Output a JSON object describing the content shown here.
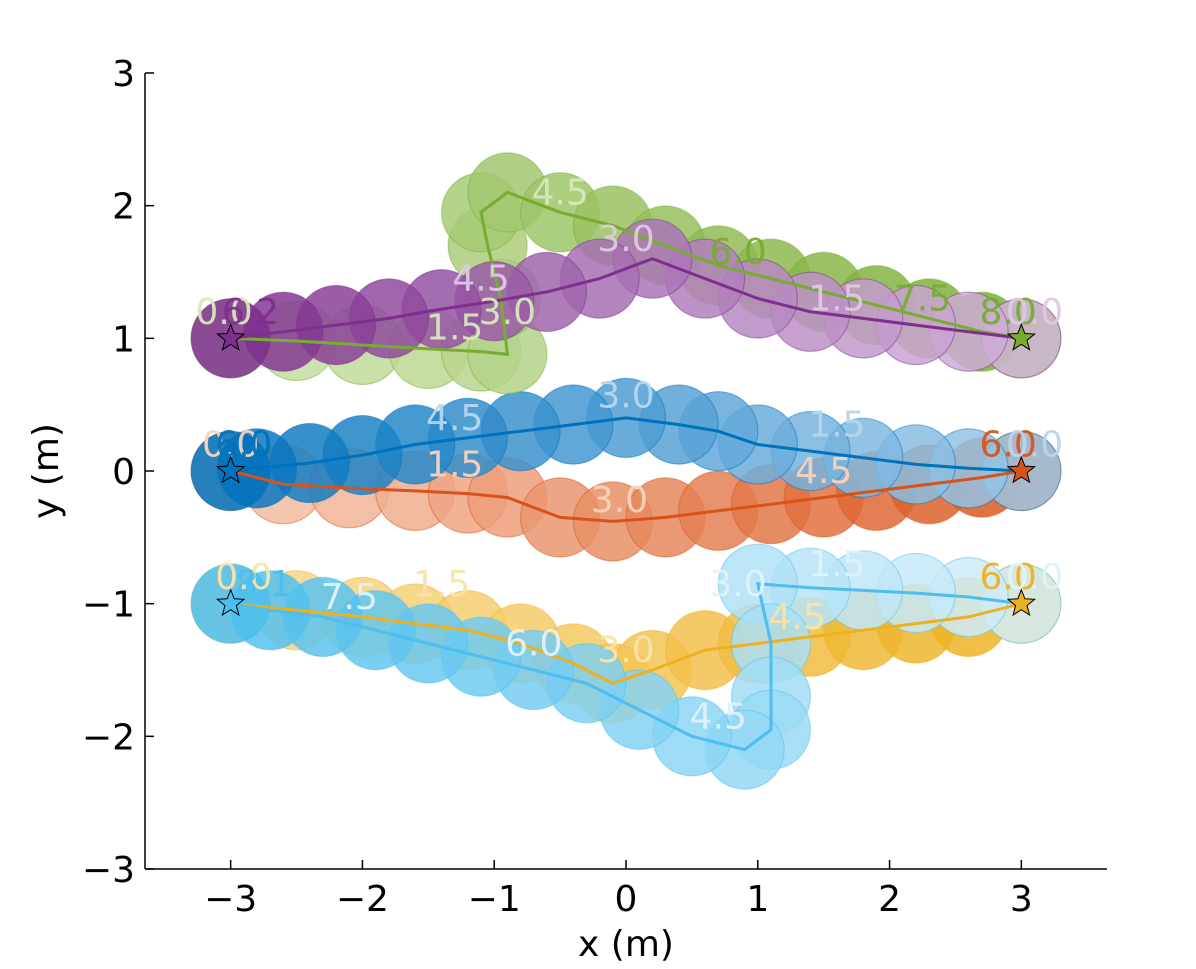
{
  "chart_data": {
    "type": "scatter",
    "xlabel": "x (m)",
    "ylabel": "y (m)",
    "xlim": [
      -3.65,
      3.65
    ],
    "ylim": [
      -3,
      3
    ],
    "xticks": [
      -3,
      -2,
      -1,
      0,
      1,
      2,
      3
    ],
    "yticks": [
      -3,
      -2,
      -1,
      0,
      1,
      2,
      3
    ],
    "xtick_labels": [
      "−3",
      "−2",
      "−1",
      "0",
      "1",
      "2",
      "3"
    ],
    "ytick_labels": [
      "−3",
      "−2",
      "−1",
      "0",
      "1",
      "2",
      "3"
    ],
    "grid": false,
    "series": [
      {
        "color_dark": "#d95319",
        "color_light": "#f5c3aa",
        "goal": [
          3,
          0
        ],
        "goal_color": "#d95319",
        "path": [
          [
            -3,
            0
          ],
          [
            -2.6,
            -0.1
          ],
          [
            -2.1,
            -0.13
          ],
          [
            -1.6,
            -0.15
          ],
          [
            -1.2,
            -0.17
          ],
          [
            -0.9,
            -0.2
          ],
          [
            -0.5,
            -0.35
          ],
          [
            -0.1,
            -0.38
          ],
          [
            0.3,
            -0.35
          ],
          [
            0.7,
            -0.3
          ],
          [
            1.1,
            -0.25
          ],
          [
            1.5,
            -0.2
          ],
          [
            1.9,
            -0.15
          ],
          [
            2.3,
            -0.1
          ],
          [
            2.7,
            -0.05
          ],
          [
            3,
            0
          ]
        ],
        "time_labels": [
          {
            "text": "0.0",
            "at": [
              -3,
              0.2
            ],
            "tone": "light"
          },
          {
            "text": "1.5",
            "at": [
              -1.3,
              0.05
            ],
            "tone": "light"
          },
          {
            "text": "3.0",
            "at": [
              -0.05,
              -0.22
            ],
            "tone": "light"
          },
          {
            "text": "4.5",
            "at": [
              1.5,
              0.0
            ],
            "tone": "light"
          },
          {
            "text": "6.0",
            "at": [
              2.9,
              0.2
            ],
            "tone": "dark"
          }
        ]
      },
      {
        "color_dark": "#0072bd",
        "color_light": "#9dc8e8",
        "goal": [
          -3,
          0
        ],
        "goal_color": "#0072bd",
        "path": [
          [
            3,
            0
          ],
          [
            2.6,
            0.02
          ],
          [
            2.2,
            0.05
          ],
          [
            1.8,
            0.1
          ],
          [
            1.4,
            0.15
          ],
          [
            1.0,
            0.2
          ],
          [
            0.7,
            0.3
          ],
          [
            0.4,
            0.35
          ],
          [
            0.0,
            0.4
          ],
          [
            -0.4,
            0.35
          ],
          [
            -0.8,
            0.3
          ],
          [
            -1.2,
            0.25
          ],
          [
            -1.6,
            0.2
          ],
          [
            -2.0,
            0.12
          ],
          [
            -2.4,
            0.06
          ],
          [
            -2.8,
            0.02
          ],
          [
            -3,
            0
          ]
        ],
        "time_labels": [
          {
            "text": "0.0",
            "at": [
              3.1,
              0.2
            ],
            "tone": "light"
          },
          {
            "text": "1.5",
            "at": [
              1.6,
              0.35
            ],
            "tone": "light"
          },
          {
            "text": "3.0",
            "at": [
              0.0,
              0.57
            ],
            "tone": "light"
          },
          {
            "text": "4.5",
            "at": [
              -1.3,
              0.4
            ],
            "tone": "light"
          },
          {
            "text": "6.0",
            "at": [
              -2.9,
              0.2
            ],
            "tone": "dark"
          }
        ]
      },
      {
        "color_dark": "#edb120",
        "color_light": "#f7d98e",
        "goal": [
          3,
          -1
        ],
        "goal_color": "#edb120",
        "path": [
          [
            -3,
            -1
          ],
          [
            -2.5,
            -1.05
          ],
          [
            -2.0,
            -1.1
          ],
          [
            -1.6,
            -1.15
          ],
          [
            -1.2,
            -1.2
          ],
          [
            -0.8,
            -1.3
          ],
          [
            -0.4,
            -1.45
          ],
          [
            -0.1,
            -1.6
          ],
          [
            0.2,
            -1.5
          ],
          [
            0.6,
            -1.35
          ],
          [
            1.0,
            -1.3
          ],
          [
            1.4,
            -1.25
          ],
          [
            1.8,
            -1.2
          ],
          [
            2.2,
            -1.15
          ],
          [
            2.6,
            -1.1
          ],
          [
            3,
            -1
          ]
        ],
        "time_labels": [
          {
            "text": "0.0",
            "at": [
              -2.9,
              -0.8
            ],
            "tone": "light"
          },
          {
            "text": "1.5",
            "at": [
              -1.4,
              -0.85
            ],
            "tone": "light"
          },
          {
            "text": "3.0",
            "at": [
              0.0,
              -1.35
            ],
            "tone": "light"
          },
          {
            "text": "4.5",
            "at": [
              1.3,
              -1.1
            ],
            "tone": "light"
          },
          {
            "text": "6.0",
            "at": [
              2.9,
              -0.8
            ],
            "tone": "dark"
          }
        ]
      },
      {
        "color_dark": "#4dbeee",
        "color_light": "#d3eefa",
        "goal": [
          -3,
          -1
        ],
        "goal_color": "#4dbeee",
        "path": [
          [
            3,
            -1
          ],
          [
            2.6,
            -0.95
          ],
          [
            2.2,
            -0.92
          ],
          [
            1.8,
            -0.9
          ],
          [
            1.4,
            -0.88
          ],
          [
            1.0,
            -0.85
          ],
          [
            1.1,
            -1.3
          ],
          [
            1.1,
            -1.7
          ],
          [
            1.1,
            -1.95
          ],
          [
            0.9,
            -2.1
          ],
          [
            0.5,
            -2.0
          ],
          [
            0.1,
            -1.8
          ],
          [
            -0.3,
            -1.6
          ],
          [
            -0.7,
            -1.5
          ],
          [
            -1.1,
            -1.4
          ],
          [
            -1.5,
            -1.3
          ],
          [
            -1.9,
            -1.2
          ],
          [
            -2.3,
            -1.1
          ],
          [
            -2.7,
            -1.05
          ],
          [
            -3,
            -1
          ]
        ],
        "time_labels": [
          {
            "text": "0.0",
            "at": [
              3.1,
              -0.8
            ],
            "tone": "light"
          },
          {
            "text": "1.5",
            "at": [
              1.6,
              -0.7
            ],
            "tone": "light"
          },
          {
            "text": "3.0",
            "at": [
              0.85,
              -0.85
            ],
            "tone": "light"
          },
          {
            "text": "4.5",
            "at": [
              0.7,
              -1.85
            ],
            "tone": "light"
          },
          {
            "text": "6.0",
            "at": [
              -0.7,
              -1.3
            ],
            "tone": "light"
          },
          {
            "text": "7.5",
            "at": [
              -2.1,
              -0.95
            ],
            "tone": "light"
          },
          {
            "text": "8.1",
            "at": [
              -2.75,
              -0.85
            ],
            "tone": "dark"
          }
        ]
      },
      {
        "color_dark": "#77ac30",
        "color_light": "#c9e0a7",
        "goal": [
          3,
          1
        ],
        "goal_color": "#77ac30",
        "path": [
          [
            -3,
            1
          ],
          [
            -2.5,
            0.98
          ],
          [
            -2.0,
            0.95
          ],
          [
            -1.5,
            0.92
          ],
          [
            -1.1,
            0.9
          ],
          [
            -0.9,
            0.88
          ],
          [
            -0.95,
            1.3
          ],
          [
            -1.05,
            1.7
          ],
          [
            -1.1,
            1.95
          ],
          [
            -0.9,
            2.1
          ],
          [
            -0.5,
            1.95
          ],
          [
            -0.1,
            1.85
          ],
          [
            0.3,
            1.7
          ],
          [
            0.7,
            1.55
          ],
          [
            1.1,
            1.45
          ],
          [
            1.5,
            1.35
          ],
          [
            1.9,
            1.25
          ],
          [
            2.3,
            1.15
          ],
          [
            2.7,
            1.05
          ],
          [
            3,
            1
          ]
        ],
        "time_labels": [
          {
            "text": "0.0",
            "at": [
              -3.05,
              1.2
            ],
            "tone": "light"
          },
          {
            "text": "1.5",
            "at": [
              -1.3,
              1.08
            ],
            "tone": "light"
          },
          {
            "text": "3.0",
            "at": [
              -0.9,
              1.2
            ],
            "tone": "light"
          },
          {
            "text": "4.5",
            "at": [
              -0.5,
              2.1
            ],
            "tone": "light"
          },
          {
            "text": "6.0",
            "at": [
              0.85,
              1.65
            ],
            "tone": "dark"
          },
          {
            "text": "7.5",
            "at": [
              2.25,
              1.3
            ],
            "tone": "dark"
          },
          {
            "text": "8.0",
            "at": [
              2.9,
              1.2
            ],
            "tone": "dark"
          }
        ]
      },
      {
        "color_dark": "#7e2f8e",
        "color_light": "#d4b5dc",
        "goal": [
          -3,
          1
        ],
        "goal_color": "#7e2f8e",
        "path": [
          [
            3,
            1
          ],
          [
            2.6,
            1.05
          ],
          [
            2.2,
            1.1
          ],
          [
            1.8,
            1.15
          ],
          [
            1.4,
            1.2
          ],
          [
            1.0,
            1.3
          ],
          [
            0.6,
            1.45
          ],
          [
            0.2,
            1.6
          ],
          [
            -0.2,
            1.45
          ],
          [
            -0.6,
            1.35
          ],
          [
            -1.0,
            1.28
          ],
          [
            -1.4,
            1.22
          ],
          [
            -1.8,
            1.15
          ],
          [
            -2.2,
            1.1
          ],
          [
            -2.6,
            1.05
          ],
          [
            -3,
            1
          ]
        ],
        "time_labels": [
          {
            "text": "1.5",
            "at": [
              1.6,
              1.3
            ],
            "tone": "light"
          },
          {
            "text": "3.0",
            "at": [
              0.0,
              1.75
            ],
            "tone": "light"
          },
          {
            "text": "4.5",
            "at": [
              -1.1,
              1.45
            ],
            "tone": "light"
          },
          {
            "text": "6.2",
            "at": [
              -2.85,
              1.2
            ],
            "tone": "dark"
          },
          {
            "text": "0.0",
            "at": [
              3.1,
              1.2
            ],
            "tone": "light"
          }
        ]
      }
    ]
  }
}
